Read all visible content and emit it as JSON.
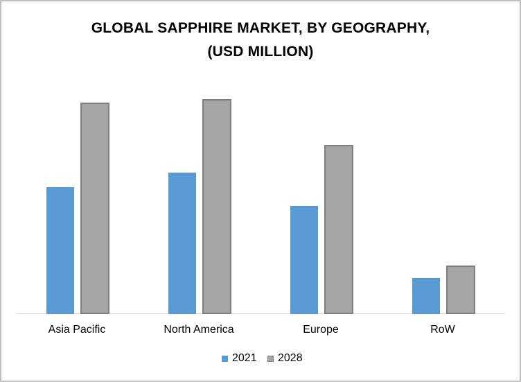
{
  "chart_data": {
    "type": "bar",
    "title": "GLOBAL SAPPHIRE MARKET, BY GEOGRAPHY, (USD MILLION)",
    "title_lines": [
      "GLOBAL SAPPHIRE MARKET, BY GEOGRAPHY,",
      "(USD MILLION)"
    ],
    "xlabel": "",
    "ylabel": "",
    "categories": [
      "Asia Pacific",
      "North America",
      "Europe",
      "RoW"
    ],
    "series": [
      {
        "name": "2021",
        "color": "#5b9bd5",
        "values": [
          183,
          204,
          156,
          52
        ]
      },
      {
        "name": "2028",
        "color": "#a5a5a5",
        "values": [
          305,
          310,
          244,
          70
        ]
      }
    ],
    "ylim": [
      0,
      353
    ],
    "grid": false,
    "y_axis_visible": false,
    "legend_position": "bottom",
    "note": "No axis ticks or data labels shown; values are relative bar heights in pixels."
  },
  "legend": {
    "items": [
      {
        "label": "2021",
        "color": "#5b9bd5"
      },
      {
        "label": "2028",
        "color": "#a5a5a5"
      }
    ]
  }
}
